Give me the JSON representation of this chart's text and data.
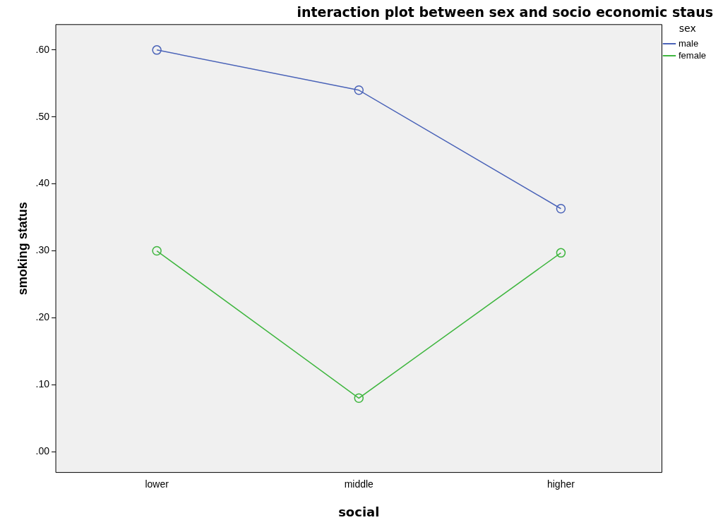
{
  "chart_data": {
    "type": "line",
    "title": "interaction plot between sex and socio economic staus",
    "xlabel": "social",
    "ylabel": "smoking status",
    "legend_title": "sex",
    "categories": [
      "lower",
      "middle",
      "higher"
    ],
    "series": [
      {
        "name": "male",
        "color": "#4a63b8",
        "values": [
          0.6,
          0.54,
          0.363
        ]
      },
      {
        "name": "female",
        "color": "#3fb63f",
        "values": [
          0.3,
          0.08,
          0.297
        ]
      }
    ],
    "ylim": [
      -0.031,
      0.638
    ],
    "yticks": [
      {
        "value": 0,
        "label": ".00"
      },
      {
        "value": 0.1,
        "label": ".10"
      },
      {
        "value": 0.2,
        "label": ".20"
      },
      {
        "value": 0.3,
        "label": ".30"
      },
      {
        "value": 0.4,
        "label": ".40"
      },
      {
        "value": 0.5,
        "label": ".50"
      },
      {
        "value": 0.6,
        "label": ".60"
      }
    ],
    "grid": false,
    "legend": "top right",
    "marker": "circle",
    "line_style": "solid"
  }
}
